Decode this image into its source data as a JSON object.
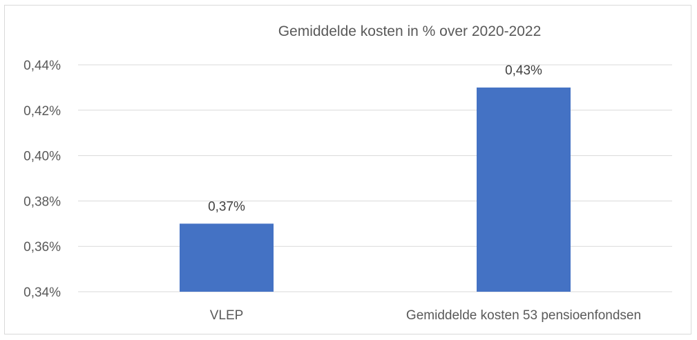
{
  "chart_data": {
    "type": "bar",
    "title": "Gemiddelde kosten in % over 2020-2022",
    "xlabel": "",
    "ylabel": "",
    "categories": [
      "VLEP",
      "Gemiddelde kosten 53 pensioenfondsen"
    ],
    "values": [
      0.37,
      0.43
    ],
    "data_labels": [
      "0,37%",
      "0,43%"
    ],
    "ylim": [
      0.34,
      0.44
    ],
    "yticks": [
      0.34,
      0.36,
      0.38,
      0.4,
      0.42,
      0.44
    ],
    "ytick_labels": [
      "0,34%",
      "0,36%",
      "0,38%",
      "0,40%",
      "0,42%",
      "0,44%"
    ],
    "grid": true,
    "legend": "none",
    "bar_color": "#4472c4"
  }
}
